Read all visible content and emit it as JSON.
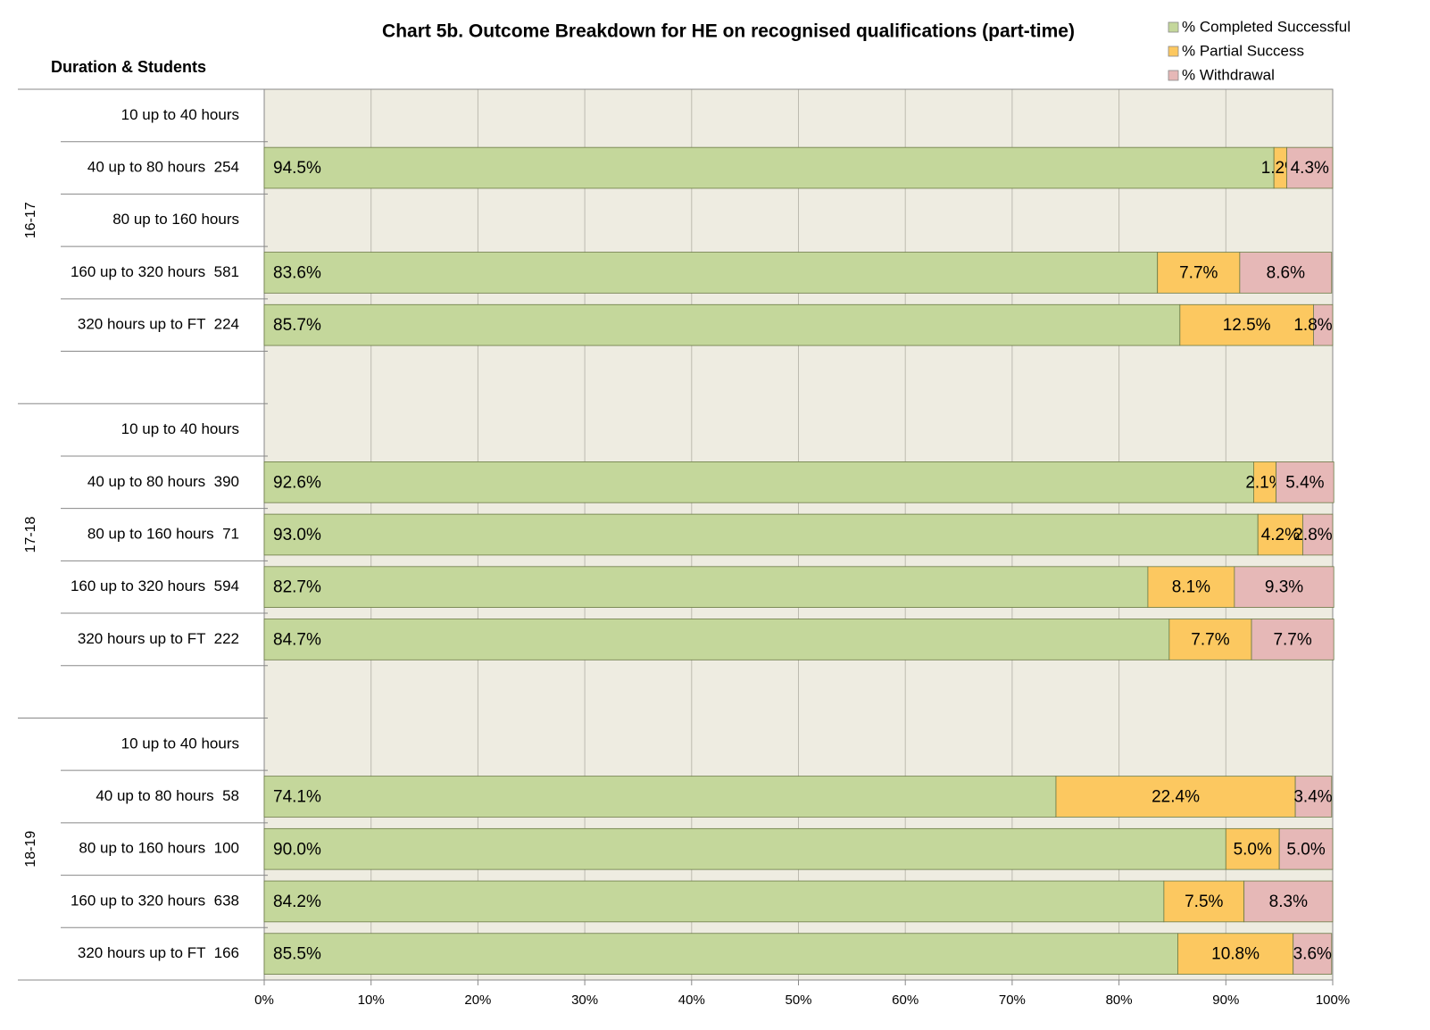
{
  "chart_data": {
    "type": "stacked_bar_horizontal",
    "title": "Chart 5b. Outcome Breakdown for HE on recognised qualifications (part-time)",
    "y_axis_label": "Duration & Students",
    "groups": [
      {
        "name": "16-17",
        "categories": [
          "10 up to 40 hours",
          "40 up to 80 hours  254",
          "80 up to 160 hours",
          "160 up to 320 hours  581",
          "320 hours up to FT  224",
          null
        ]
      },
      {
        "name": "17-18",
        "categories": [
          "10 up to 40 hours",
          "40 up to 80 hours  390",
          "80 up to 160 hours  71",
          "160 up to 320 hours  594",
          "320 hours up to FT  222",
          null
        ]
      },
      {
        "name": "18-19",
        "categories": [
          "10 up to 40 hours",
          "40 up to 80 hours  58",
          "80 up to 160 hours  100",
          "160 up to 320 hours  638",
          "320 hours up to FT  166"
        ]
      }
    ],
    "series": [
      {
        "name": "% Completed Successful",
        "color": "#c4d79b",
        "values": [
          null,
          94.5,
          null,
          83.6,
          85.7,
          null,
          null,
          92.6,
          93.0,
          82.7,
          84.7,
          null,
          null,
          74.1,
          90.0,
          84.2,
          85.5
        ],
        "value_labels": [
          null,
          "94.5%",
          null,
          "83.6%",
          "85.7%",
          null,
          null,
          "92.6%",
          "93.0%",
          "82.7%",
          "84.7%",
          null,
          null,
          "74.1%",
          "90.0%",
          "84.2%",
          "85.5%"
        ]
      },
      {
        "name": "% Partial Success",
        "color": "#fcc860",
        "values": [
          null,
          1.2,
          null,
          7.7,
          12.5,
          null,
          null,
          2.1,
          4.2,
          8.1,
          7.7,
          null,
          null,
          22.4,
          5.0,
          7.5,
          10.8
        ],
        "value_labels": [
          null,
          "1.2%",
          null,
          "7.7%",
          "12.5%",
          null,
          null,
          "2.1%",
          "4.2%",
          "8.1%",
          "7.7%",
          null,
          null,
          "22.4%",
          "5.0%",
          "7.5%",
          "10.8%"
        ]
      },
      {
        "name": "% Withdrawal",
        "color": "#e6b8b7",
        "values": [
          null,
          4.3,
          null,
          8.6,
          1.8,
          null,
          null,
          5.4,
          2.8,
          9.3,
          7.7,
          null,
          null,
          3.4,
          5.0,
          8.3,
          3.6
        ],
        "value_labels": [
          null,
          "4.3%",
          null,
          "8.6%",
          "1.8%",
          null,
          null,
          "5.4%",
          "2.8%",
          "9.3%",
          "7.7%",
          null,
          null,
          "3.4%",
          "5.0%",
          "8.3%",
          "3.6%"
        ]
      }
    ],
    "xlim": [
      0,
      100
    ],
    "xticks": [
      {
        "value": 0,
        "label": "0%"
      },
      {
        "value": 10,
        "label": "10%"
      },
      {
        "value": 20,
        "label": "20%"
      },
      {
        "value": 30,
        "label": "30%"
      },
      {
        "value": 40,
        "label": "40%"
      },
      {
        "value": 50,
        "label": "50%"
      },
      {
        "value": 60,
        "label": "60%"
      },
      {
        "value": 70,
        "label": "70%"
      },
      {
        "value": 80,
        "label": "80%"
      },
      {
        "value": 90,
        "label": "90%"
      },
      {
        "value": 100,
        "label": "100%"
      }
    ],
    "grid": true,
    "legend": "top-right"
  }
}
